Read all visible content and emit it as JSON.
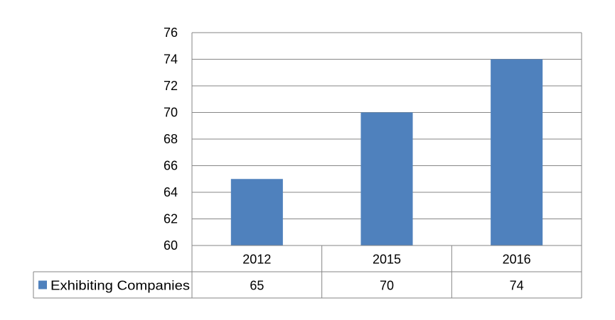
{
  "chart_data": {
    "type": "bar",
    "categories": [
      "2012",
      "2015",
      "2016"
    ],
    "series": [
      {
        "name": "Exhibiting Companies",
        "values": [
          65,
          70,
          74
        ],
        "color": "#4f81bd"
      }
    ],
    "ylim": [
      60,
      76
    ],
    "ytick_labels": [
      "60",
      "62",
      "64",
      "66",
      "68",
      "70",
      "72",
      "74",
      "76"
    ],
    "grid": true,
    "legend": "data-table-bottom",
    "data_table": {
      "header": [
        "2012",
        "2015",
        "2016"
      ],
      "rows": [
        {
          "label": "Exhibiting Companies",
          "cells": [
            "65",
            "70",
            "74"
          ]
        }
      ]
    }
  }
}
